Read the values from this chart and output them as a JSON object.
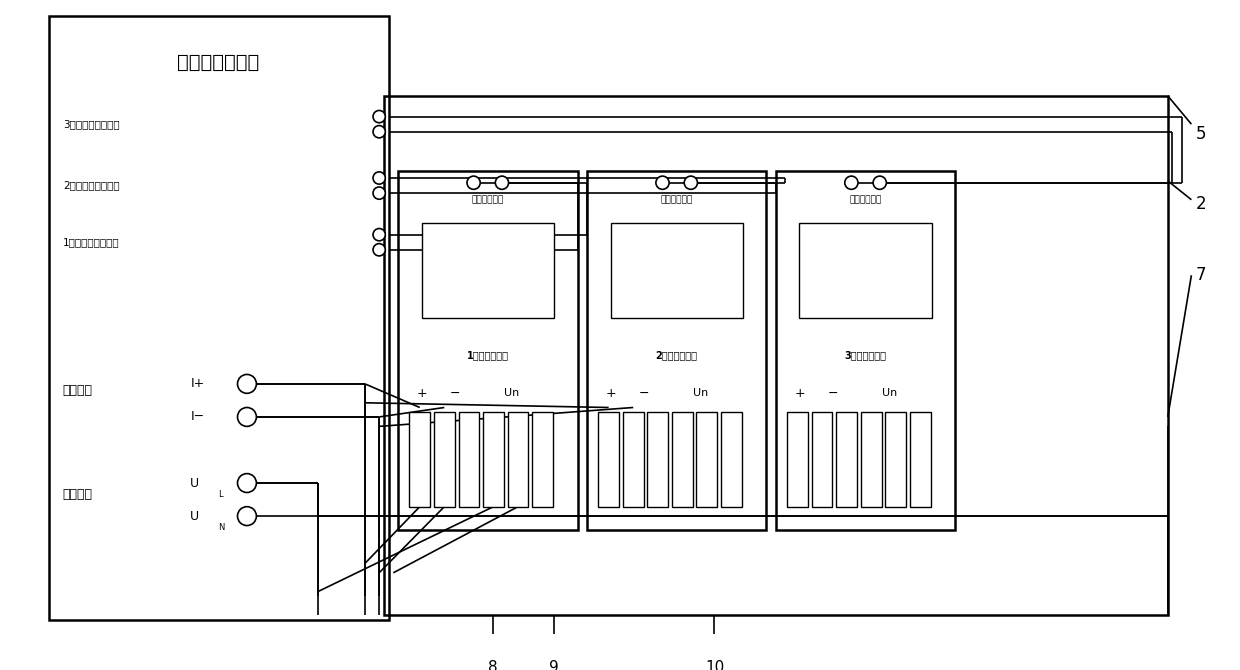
{
  "bg_color": "#ffffff",
  "lc": "#000000",
  "title": "电能表检验设备",
  "pulse_inputs": [
    "3号电能表脉冲输入",
    "2号电能表脉冲输入",
    "1号电能表脉冲输入"
  ],
  "current_out_label": "电流输出",
  "voltage_out_label": "电压输出",
  "pulse_out_label": "电能脉冲输出",
  "meter_labels": [
    "1号被测电能表",
    "2号被测电能表",
    "3号被测电能表"
  ],
  "note_5": "5",
  "note_2": "2",
  "note_7": "7",
  "note_8": "8",
  "note_9": "9",
  "note_10": "10"
}
